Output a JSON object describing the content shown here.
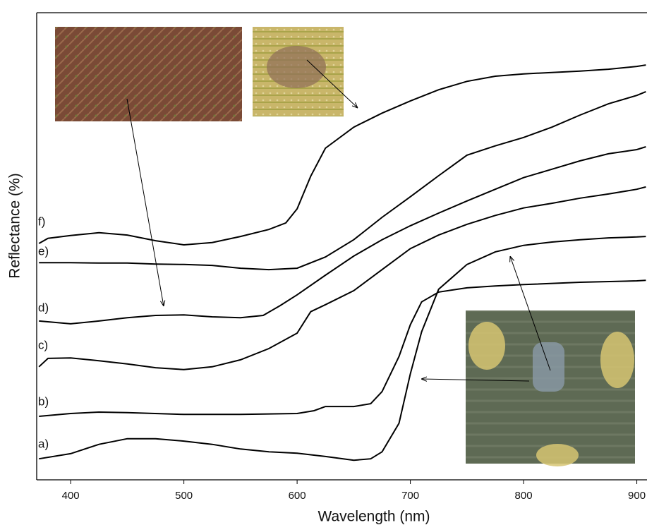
{
  "chart_data": {
    "type": "line",
    "xlabel": "Wavelength (nm)",
    "ylabel": "Reflectance (%)",
    "xlim": [
      370,
      909
    ],
    "ylim": [
      0,
      100
    ],
    "xticks": [
      400,
      500,
      600,
      700,
      800,
      900
    ],
    "color": "#000000",
    "series": [
      {
        "name": "a)",
        "x": [
          372,
          400,
          425,
          450,
          475,
          500,
          525,
          550,
          575,
          600,
          625,
          650,
          665,
          675,
          690,
          700,
          710,
          725,
          750,
          775,
          800,
          825,
          850,
          875,
          900,
          908
        ],
        "values": [
          4.5,
          5.6,
          7.6,
          8.8,
          8.8,
          8.3,
          7.6,
          6.6,
          6.0,
          5.7,
          5.0,
          4.2,
          4.5,
          6.0,
          12.1,
          22.7,
          31.7,
          40.8,
          46.1,
          48.8,
          50.2,
          50.9,
          51.4,
          51.8,
          52.0,
          52.1
        ]
      },
      {
        "name": "b)",
        "x": [
          372,
          400,
          425,
          450,
          500,
          550,
          600,
          615,
          625,
          650,
          665,
          675,
          690,
          700,
          710,
          725,
          750,
          775,
          800,
          850,
          900,
          908
        ],
        "values": [
          13.6,
          14.2,
          14.5,
          14.4,
          14.0,
          14.0,
          14.2,
          14.8,
          15.7,
          15.7,
          16.3,
          18.9,
          26.4,
          33.2,
          38.1,
          40.2,
          41.1,
          41.5,
          41.8,
          42.3,
          42.6,
          42.7
        ]
      },
      {
        "name": "c)",
        "x": [
          372,
          380,
          400,
          425,
          450,
          475,
          500,
          525,
          550,
          575,
          600,
          612,
          625,
          650,
          675,
          700,
          725,
          750,
          775,
          800,
          825,
          850,
          875,
          900,
          908
        ],
        "values": [
          24.2,
          26.0,
          26.1,
          25.5,
          24.8,
          24.0,
          23.6,
          24.2,
          25.7,
          28.1,
          31.4,
          36.0,
          37.5,
          40.5,
          45.0,
          49.5,
          52.4,
          54.7,
          56.6,
          58.2,
          59.2,
          60.3,
          61.2,
          62.2,
          62.7
        ]
      },
      {
        "name": "d)",
        "x": [
          372,
          400,
          425,
          450,
          475,
          500,
          525,
          550,
          570,
          585,
          600,
          625,
          650,
          675,
          700,
          725,
          750,
          775,
          800,
          825,
          850,
          875,
          900,
          908
        ],
        "values": [
          34.0,
          33.4,
          34.0,
          34.7,
          35.2,
          35.3,
          34.9,
          34.7,
          35.2,
          37.3,
          39.6,
          43.8,
          47.9,
          51.4,
          54.4,
          57.1,
          59.7,
          62.2,
          64.7,
          66.5,
          68.3,
          69.8,
          70.7,
          71.3
        ]
      },
      {
        "name": "e)",
        "x": [
          372,
          400,
          425,
          450,
          475,
          500,
          525,
          550,
          575,
          600,
          625,
          650,
          675,
          700,
          725,
          750,
          775,
          800,
          825,
          850,
          875,
          900,
          908
        ],
        "values": [
          46.5,
          46.5,
          46.4,
          46.4,
          46.2,
          46.1,
          45.9,
          45.3,
          45.0,
          45.3,
          47.7,
          51.4,
          56.2,
          60.6,
          65.1,
          69.5,
          71.5,
          73.3,
          75.5,
          78.1,
          80.5,
          82.3,
          83.1
        ]
      },
      {
        "name": "f)",
        "x": [
          372,
          380,
          400,
          425,
          450,
          475,
          500,
          525,
          550,
          575,
          590,
          600,
          612,
          625,
          650,
          675,
          700,
          725,
          750,
          775,
          800,
          825,
          850,
          875,
          900,
          908
        ],
        "values": [
          50.6,
          51.7,
          52.3,
          52.9,
          52.4,
          51.2,
          50.3,
          50.8,
          52.1,
          53.6,
          55.0,
          58.0,
          65.0,
          71.0,
          75.5,
          78.5,
          81.1,
          83.5,
          85.3,
          86.4,
          86.9,
          87.2,
          87.5,
          87.9,
          88.5,
          88.8
        ]
      }
    ]
  }
}
